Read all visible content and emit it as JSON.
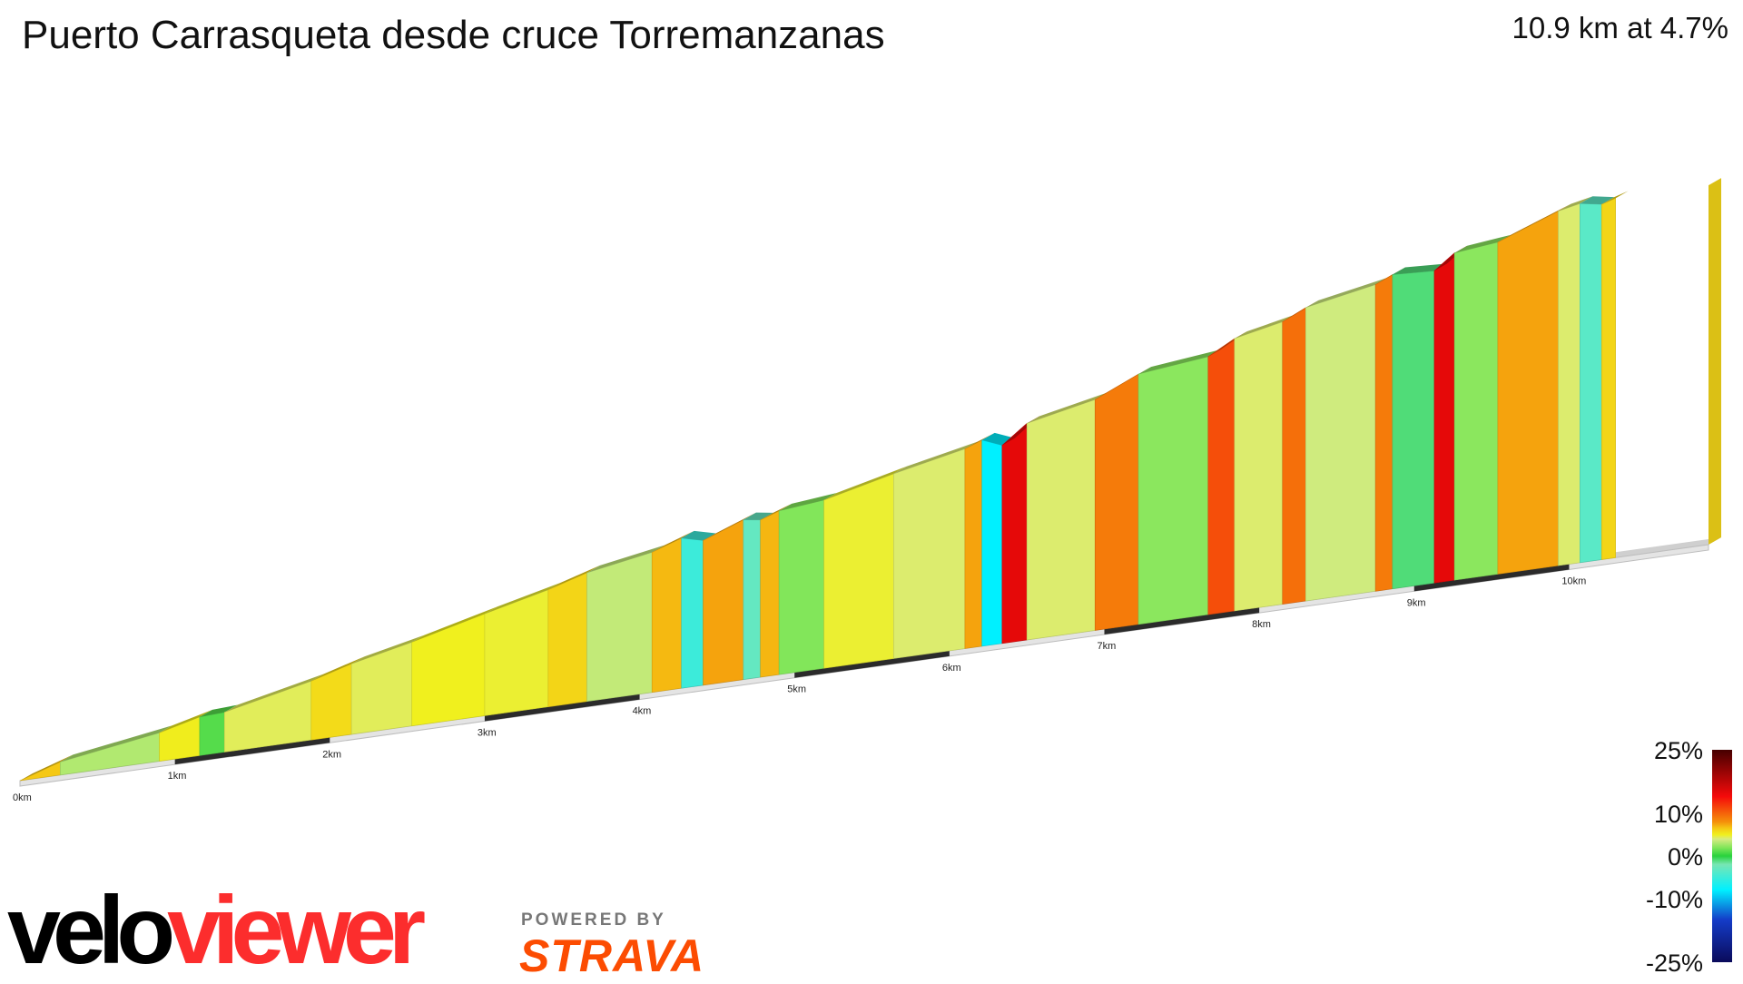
{
  "header": {
    "title": "Puerto Carrasqueta desde cruce Torremanzanas",
    "summary": "10.9 km at 4.7%"
  },
  "branding": {
    "logo_part1": "velo",
    "logo_part2": "viewer",
    "powered_by": "POWERED BY",
    "strava": "STRAVA"
  },
  "chart_data": {
    "type": "area",
    "title": "Puerto Carrasqueta desde cruce Torremanzanas",
    "xlabel": "",
    "ylabel": "",
    "x_unit": "km",
    "xlim": [
      0,
      10.9
    ],
    "x_ticks": [
      {
        "value": 0,
        "label": "0km"
      },
      {
        "value": 1,
        "label": "1km"
      },
      {
        "value": 2,
        "label": "2km"
      },
      {
        "value": 3,
        "label": "3km"
      },
      {
        "value": 4,
        "label": "4km"
      },
      {
        "value": 5,
        "label": "5km"
      },
      {
        "value": 6,
        "label": "6km"
      },
      {
        "value": 7,
        "label": "7km"
      },
      {
        "value": 8,
        "label": "8km"
      },
      {
        "value": 9,
        "label": "9km"
      },
      {
        "value": 10,
        "label": "10km"
      }
    ],
    "segments": [
      {
        "x0": 0.0,
        "x1": 0.26,
        "gradient": 6.5
      },
      {
        "x0": 0.26,
        "x1": 0.9,
        "gradient": 3.1
      },
      {
        "x0": 0.9,
        "x1": 1.16,
        "gradient": 5.1
      },
      {
        "x0": 1.16,
        "x1": 1.32,
        "gradient": 1.0
      },
      {
        "x0": 1.32,
        "x1": 1.88,
        "gradient": 4.4
      },
      {
        "x0": 1.88,
        "x1": 2.14,
        "gradient": 5.8
      },
      {
        "x0": 2.14,
        "x1": 2.53,
        "gradient": 4.4
      },
      {
        "x0": 2.53,
        "x1": 3.0,
        "gradient": 5.0
      },
      {
        "x0": 3.0,
        "x1": 3.41,
        "gradient": 4.8
      },
      {
        "x0": 3.41,
        "x1": 3.66,
        "gradient": 6.0
      },
      {
        "x0": 3.66,
        "x1": 4.08,
        "gradient": 3.5
      },
      {
        "x0": 4.08,
        "x1": 4.27,
        "gradient": 6.9
      },
      {
        "x0": 4.27,
        "x1": 4.41,
        "gradient": -5.0
      },
      {
        "x0": 4.41,
        "x1": 4.67,
        "gradient": 7.5
      },
      {
        "x0": 4.67,
        "x1": 4.78,
        "gradient": -3.0
      },
      {
        "x0": 4.78,
        "x1": 4.9,
        "gradient": 7.0
      },
      {
        "x0": 4.9,
        "x1": 5.19,
        "gradient": 2.0
      },
      {
        "x0": 5.19,
        "x1": 5.64,
        "gradient": 4.8
      },
      {
        "x0": 5.64,
        "x1": 6.1,
        "gradient": 4.2
      },
      {
        "x0": 6.1,
        "x1": 6.21,
        "gradient": 7.5
      },
      {
        "x0": 6.21,
        "x1": 6.34,
        "gradient": -8.0
      },
      {
        "x0": 6.34,
        "x1": 6.5,
        "gradient": 15.0
      },
      {
        "x0": 6.5,
        "x1": 6.94,
        "gradient": 4.2
      },
      {
        "x0": 6.94,
        "x1": 7.22,
        "gradient": 9.0
      },
      {
        "x0": 7.22,
        "x1": 7.67,
        "gradient": 2.2
      },
      {
        "x0": 7.67,
        "x1": 7.84,
        "gradient": 11.0
      },
      {
        "x0": 7.84,
        "x1": 8.15,
        "gradient": 4.2
      },
      {
        "x0": 8.15,
        "x1": 8.3,
        "gradient": 9.5
      },
      {
        "x0": 8.3,
        "x1": 8.75,
        "gradient": 3.8
      },
      {
        "x0": 8.75,
        "x1": 8.86,
        "gradient": 9.0
      },
      {
        "x0": 8.86,
        "x1": 9.13,
        "gradient": -1.0
      },
      {
        "x0": 9.13,
        "x1": 9.26,
        "gradient": 15.0
      },
      {
        "x0": 9.26,
        "x1": 9.54,
        "gradient": 2.2
      },
      {
        "x0": 9.54,
        "x1": 9.93,
        "gradient": 7.5
      },
      {
        "x0": 9.93,
        "x1": 10.07,
        "gradient": 4.2
      },
      {
        "x0": 10.07,
        "x1": 10.21,
        "gradient": -3.5
      },
      {
        "x0": 10.21,
        "x1": 10.3,
        "gradient": 6.0
      }
    ],
    "color_scale": {
      "labels": [
        "25%",
        "10%",
        "0%",
        "-10%",
        "-25%"
      ],
      "values": [
        25,
        10,
        0,
        -10,
        -25
      ]
    }
  }
}
